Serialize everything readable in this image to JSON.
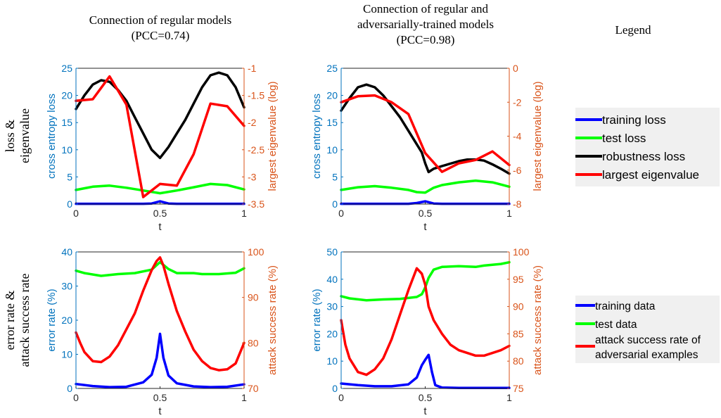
{
  "figure": {
    "col_titles": [
      [
        "Connection of regular models",
        "(PCC=0.74)"
      ],
      [
        "Connection of regular and",
        "adversarially-trained models",
        "(PCC=0.98)"
      ],
      [
        "Legend"
      ]
    ],
    "row_titles": [
      [
        "loss &",
        "eigenvalue"
      ],
      [
        "error rate &",
        "attack success rate"
      ]
    ],
    "legend_top": [
      {
        "label": "training loss",
        "color": "#0000ff"
      },
      {
        "label": "test loss",
        "color": "#00ff00"
      },
      {
        "label": "robustness loss",
        "color": "#000000"
      },
      {
        "label": "largest eigenvalue",
        "color": "#ff0000"
      }
    ],
    "legend_bottom": [
      {
        "label": [
          "training data"
        ],
        "color": "#0000ff"
      },
      {
        "label": [
          "test data"
        ],
        "color": "#00ff00"
      },
      {
        "label": [
          "attack success rate of",
          "adversarial examples"
        ],
        "color": "#ff0000"
      }
    ],
    "colors": {
      "left_axis": "#0072bd",
      "right_axis": "#d95319",
      "training": "#0000ff",
      "test": "#00ff00",
      "robustness": "#000000",
      "eigen": "#ff0000"
    }
  },
  "chart_data": [
    {
      "type": "line",
      "xlabel": "t",
      "ylabel": "cross entropy loss",
      "ylabel_right": "largest eigenvalue (log)",
      "xlim": [
        0,
        1
      ],
      "ylim": [
        0,
        25
      ],
      "ylim_right": [
        -3.5,
        -1
      ],
      "xticks": [
        "0",
        "0.5",
        "1"
      ],
      "yticks": [
        "0",
        "5",
        "10",
        "15",
        "20",
        "25"
      ],
      "yticks_right": [
        "-3.5",
        "-3",
        "-2.5",
        "-2",
        "-1.5",
        "-1"
      ],
      "series": [
        {
          "axis": "left",
          "color": "#0000ff",
          "points": [
            [
              0,
              0.05
            ],
            [
              0.4,
              0.05
            ],
            [
              0.45,
              0.1
            ],
            [
              0.5,
              0.5
            ],
            [
              0.55,
              0.1
            ],
            [
              0.6,
              0.05
            ],
            [
              1,
              0.05
            ]
          ]
        },
        {
          "axis": "left",
          "color": "#00ff00",
          "points": [
            [
              0,
              2.6
            ],
            [
              0.1,
              3.2
            ],
            [
              0.2,
              3.4
            ],
            [
              0.3,
              3.0
            ],
            [
              0.4,
              2.5
            ],
            [
              0.5,
              2.0
            ],
            [
              0.6,
              2.5
            ],
            [
              0.7,
              3.1
            ],
            [
              0.8,
              3.7
            ],
            [
              0.9,
              3.5
            ],
            [
              1,
              2.7
            ]
          ]
        },
        {
          "axis": "left",
          "color": "#000000",
          "points": [
            [
              0,
              17.5
            ],
            [
              0.05,
              20.0
            ],
            [
              0.1,
              22.0
            ],
            [
              0.15,
              22.8
            ],
            [
              0.2,
              22.5
            ],
            [
              0.25,
              21.0
            ],
            [
              0.3,
              19.0
            ],
            [
              0.35,
              16.0
            ],
            [
              0.4,
              13.0
            ],
            [
              0.45,
              10.0
            ],
            [
              0.5,
              8.5
            ],
            [
              0.55,
              10.5
            ],
            [
              0.6,
              13.0
            ],
            [
              0.65,
              15.5
            ],
            [
              0.7,
              18.5
            ],
            [
              0.75,
              21.5
            ],
            [
              0.8,
              23.7
            ],
            [
              0.85,
              24.2
            ],
            [
              0.9,
              23.7
            ],
            [
              0.95,
              21.5
            ],
            [
              1,
              17.8
            ]
          ]
        },
        {
          "axis": "right",
          "color": "#ff0000",
          "points": [
            [
              0,
              -1.6
            ],
            [
              0.1,
              -1.57
            ],
            [
              0.2,
              -1.15
            ],
            [
              0.3,
              -1.67
            ],
            [
              0.4,
              -3.37
            ],
            [
              0.5,
              -3.13
            ],
            [
              0.6,
              -3.16
            ],
            [
              0.7,
              -2.58
            ],
            [
              0.8,
              -1.65
            ],
            [
              0.9,
              -1.7
            ],
            [
              1,
              -2.06
            ]
          ]
        }
      ]
    },
    {
      "type": "line",
      "xlabel": "t",
      "ylabel": "cross entropy loss",
      "ylabel_right": "largest eigenvalue (log)",
      "xlim": [
        0,
        1
      ],
      "ylim": [
        0,
        25
      ],
      "ylim_right": [
        -8,
        0
      ],
      "xticks": [
        "0",
        "0.5",
        "1"
      ],
      "yticks": [
        "0",
        "5",
        "10",
        "15",
        "20",
        "25"
      ],
      "yticks_right": [
        "-8",
        "-6",
        "-4",
        "-2",
        "0"
      ],
      "series": [
        {
          "axis": "left",
          "color": "#0000ff",
          "points": [
            [
              0,
              0.05
            ],
            [
              0.4,
              0.05
            ],
            [
              0.45,
              0.2
            ],
            [
              0.5,
              0.5
            ],
            [
              0.55,
              0.1
            ],
            [
              0.6,
              0.05
            ],
            [
              1,
              0.05
            ]
          ]
        },
        {
          "axis": "left",
          "color": "#00ff00",
          "points": [
            [
              0,
              2.6
            ],
            [
              0.1,
              3.1
            ],
            [
              0.2,
              3.3
            ],
            [
              0.3,
              3.0
            ],
            [
              0.4,
              2.6
            ],
            [
              0.45,
              2.2
            ],
            [
              0.5,
              2.1
            ],
            [
              0.55,
              3.0
            ],
            [
              0.6,
              3.5
            ],
            [
              0.7,
              4.0
            ],
            [
              0.8,
              4.3
            ],
            [
              0.9,
              4.0
            ],
            [
              1,
              3.2
            ]
          ]
        },
        {
          "axis": "left",
          "color": "#000000",
          "points": [
            [
              0,
              17.2
            ],
            [
              0.05,
              19.5
            ],
            [
              0.1,
              21.5
            ],
            [
              0.15,
              22.0
            ],
            [
              0.2,
              21.5
            ],
            [
              0.25,
              20.0
            ],
            [
              0.3,
              18.0
            ],
            [
              0.35,
              16.0
            ],
            [
              0.4,
              13.5
            ],
            [
              0.45,
              11.0
            ],
            [
              0.48,
              9.5
            ],
            [
              0.5,
              7.5
            ],
            [
              0.52,
              5.9
            ],
            [
              0.55,
              6.5
            ],
            [
              0.6,
              7.0
            ],
            [
              0.7,
              7.9
            ],
            [
              0.75,
              8.2
            ],
            [
              0.8,
              8.2
            ],
            [
              0.85,
              8.0
            ],
            [
              0.9,
              7.3
            ],
            [
              0.95,
              6.5
            ],
            [
              1,
              5.6
            ]
          ]
        },
        {
          "axis": "right",
          "color": "#ff0000",
          "points": [
            [
              0,
              -2.0
            ],
            [
              0.1,
              -1.65
            ],
            [
              0.2,
              -1.6
            ],
            [
              0.3,
              -2.0
            ],
            [
              0.4,
              -2.7
            ],
            [
              0.5,
              -5.0
            ],
            [
              0.6,
              -6.1
            ],
            [
              0.7,
              -5.6
            ],
            [
              0.8,
              -5.4
            ],
            [
              0.9,
              -4.9
            ],
            [
              1,
              -5.7
            ]
          ]
        }
      ]
    },
    {
      "type": "line",
      "xlabel": "t",
      "ylabel": "error rate (%)",
      "ylabel_right": "attack success rate (%)",
      "xlim": [
        0,
        1
      ],
      "ylim": [
        0,
        40
      ],
      "ylim_right": [
        70,
        100
      ],
      "xticks": [
        "0",
        "0.5",
        "1"
      ],
      "yticks": [
        "0",
        "10",
        "20",
        "30",
        "40"
      ],
      "yticks_right": [
        "70",
        "80",
        "90",
        "100"
      ],
      "series": [
        {
          "axis": "left",
          "color": "#0000ff",
          "points": [
            [
              0,
              1.3
            ],
            [
              0.1,
              0.7
            ],
            [
              0.2,
              0.4
            ],
            [
              0.3,
              0.5
            ],
            [
              0.4,
              1.8
            ],
            [
              0.45,
              4.0
            ],
            [
              0.48,
              9.0
            ],
            [
              0.5,
              16.0
            ],
            [
              0.52,
              9.0
            ],
            [
              0.55,
              3.8
            ],
            [
              0.6,
              1.5
            ],
            [
              0.7,
              0.6
            ],
            [
              0.8,
              0.4
            ],
            [
              0.9,
              0.5
            ],
            [
              1,
              1.2
            ]
          ]
        },
        {
          "axis": "left",
          "color": "#00ff00",
          "points": [
            [
              0,
              34.5
            ],
            [
              0.05,
              33.8
            ],
            [
              0.15,
              33.0
            ],
            [
              0.25,
              33.5
            ],
            [
              0.35,
              33.8
            ],
            [
              0.45,
              34.8
            ],
            [
              0.5,
              37.0
            ],
            [
              0.55,
              35.0
            ],
            [
              0.6,
              33.8
            ],
            [
              0.7,
              33.8
            ],
            [
              0.75,
              33.5
            ],
            [
              0.85,
              33.5
            ],
            [
              0.95,
              33.9
            ],
            [
              1,
              35.2
            ]
          ]
        },
        {
          "axis": "right",
          "color": "#ff0000",
          "points": [
            [
              0,
              82.3
            ],
            [
              0.025,
              80.0
            ],
            [
              0.05,
              78.0
            ],
            [
              0.1,
              76.0
            ],
            [
              0.15,
              75.8
            ],
            [
              0.2,
              77.0
            ],
            [
              0.25,
              79.5
            ],
            [
              0.3,
              83.0
            ],
            [
              0.35,
              86.5
            ],
            [
              0.4,
              91.5
            ],
            [
              0.45,
              96.0
            ],
            [
              0.48,
              98.0
            ],
            [
              0.5,
              98.8
            ],
            [
              0.52,
              97.0
            ],
            [
              0.55,
              93.0
            ],
            [
              0.6,
              87.0
            ],
            [
              0.65,
              82.5
            ],
            [
              0.7,
              78.5
            ],
            [
              0.75,
              76.0
            ],
            [
              0.8,
              74.5
            ],
            [
              0.85,
              74.0
            ],
            [
              0.9,
              74.2
            ],
            [
              0.95,
              75.5
            ],
            [
              1,
              80.0
            ]
          ]
        }
      ]
    },
    {
      "type": "line",
      "xlabel": "t",
      "ylabel": "error rate (%)",
      "ylabel_right": "attack success rate (%)",
      "xlim": [
        0,
        1
      ],
      "ylim": [
        0,
        50
      ],
      "ylim_right": [
        75,
        100
      ],
      "xticks": [
        "0",
        "0.5",
        "1"
      ],
      "yticks": [
        "0",
        "10",
        "20",
        "30",
        "40",
        "50"
      ],
      "yticks_right": [
        "75",
        "80",
        "85",
        "90",
        "95",
        "100"
      ],
      "series": [
        {
          "axis": "left",
          "color": "#0000ff",
          "points": [
            [
              0,
              1.8
            ],
            [
              0.1,
              1.2
            ],
            [
              0.2,
              0.8
            ],
            [
              0.3,
              0.8
            ],
            [
              0.4,
              1.5
            ],
            [
              0.45,
              4.0
            ],
            [
              0.48,
              8.5
            ],
            [
              0.5,
              10.5
            ],
            [
              0.52,
              12.3
            ],
            [
              0.54,
              6.0
            ],
            [
              0.56,
              1.2
            ],
            [
              0.6,
              0.3
            ],
            [
              0.7,
              0.2
            ],
            [
              0.8,
              0.2
            ],
            [
              1,
              0.2
            ]
          ]
        },
        {
          "axis": "left",
          "color": "#00ff00",
          "points": [
            [
              0,
              33.8
            ],
            [
              0.05,
              33.0
            ],
            [
              0.15,
              32.3
            ],
            [
              0.25,
              32.6
            ],
            [
              0.35,
              32.8
            ],
            [
              0.45,
              33.5
            ],
            [
              0.48,
              34.5
            ],
            [
              0.5,
              37.0
            ],
            [
              0.52,
              40.5
            ],
            [
              0.55,
              43.5
            ],
            [
              0.6,
              44.5
            ],
            [
              0.7,
              44.8
            ],
            [
              0.8,
              44.5
            ],
            [
              0.85,
              45.0
            ],
            [
              0.95,
              45.6
            ],
            [
              1,
              46.2
            ]
          ]
        },
        {
          "axis": "right",
          "color": "#ff0000",
          "points": [
            [
              0,
              87.5
            ],
            [
              0.025,
              83.0
            ],
            [
              0.05,
              80.5
            ],
            [
              0.1,
              78.0
            ],
            [
              0.15,
              77.5
            ],
            [
              0.2,
              78.5
            ],
            [
              0.25,
              80.5
            ],
            [
              0.3,
              84.0
            ],
            [
              0.35,
              88.5
            ],
            [
              0.4,
              93.0
            ],
            [
              0.45,
              97.0
            ],
            [
              0.48,
              96.0
            ],
            [
              0.5,
              94.0
            ],
            [
              0.52,
              90.0
            ],
            [
              0.55,
              87.5
            ],
            [
              0.6,
              85.0
            ],
            [
              0.65,
              83.0
            ],
            [
              0.7,
              82.0
            ],
            [
              0.75,
              81.5
            ],
            [
              0.8,
              81.0
            ],
            [
              0.85,
              81.0
            ],
            [
              0.9,
              81.5
            ],
            [
              0.95,
              82.0
            ],
            [
              1,
              82.8
            ]
          ]
        }
      ]
    }
  ]
}
